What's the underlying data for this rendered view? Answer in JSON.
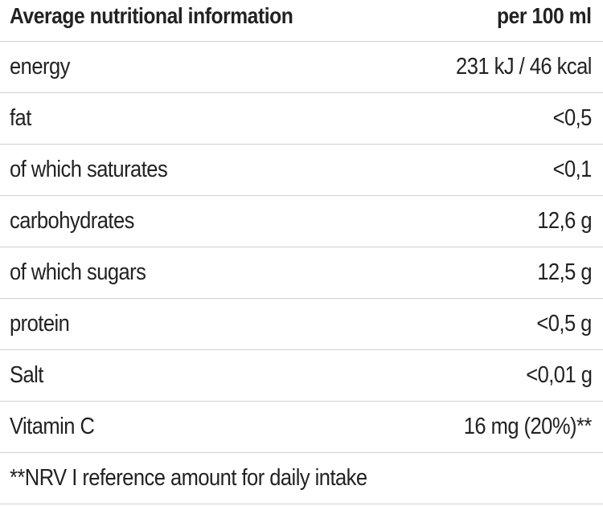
{
  "header": {
    "label": "Average nutritional information",
    "value": "per 100 ml"
  },
  "rows": [
    {
      "label": "energy",
      "value": "231 kJ / 46 kcal"
    },
    {
      "label": "fat",
      "value": "<0,5"
    },
    {
      "label": "of which saturates",
      "value": "<0,1"
    },
    {
      "label": "carbohydrates",
      "value": "12,6 g"
    },
    {
      "label": "of which sugars",
      "value": "12,5 g"
    },
    {
      "label": "protein",
      "value": "<0,5 g"
    },
    {
      "label": "Salt",
      "value": "<0,01 g"
    },
    {
      "label": "Vitamin C",
      "value": "16 mg (20%)**"
    }
  ],
  "footnote": "**NRV I reference amount for daily intake"
}
